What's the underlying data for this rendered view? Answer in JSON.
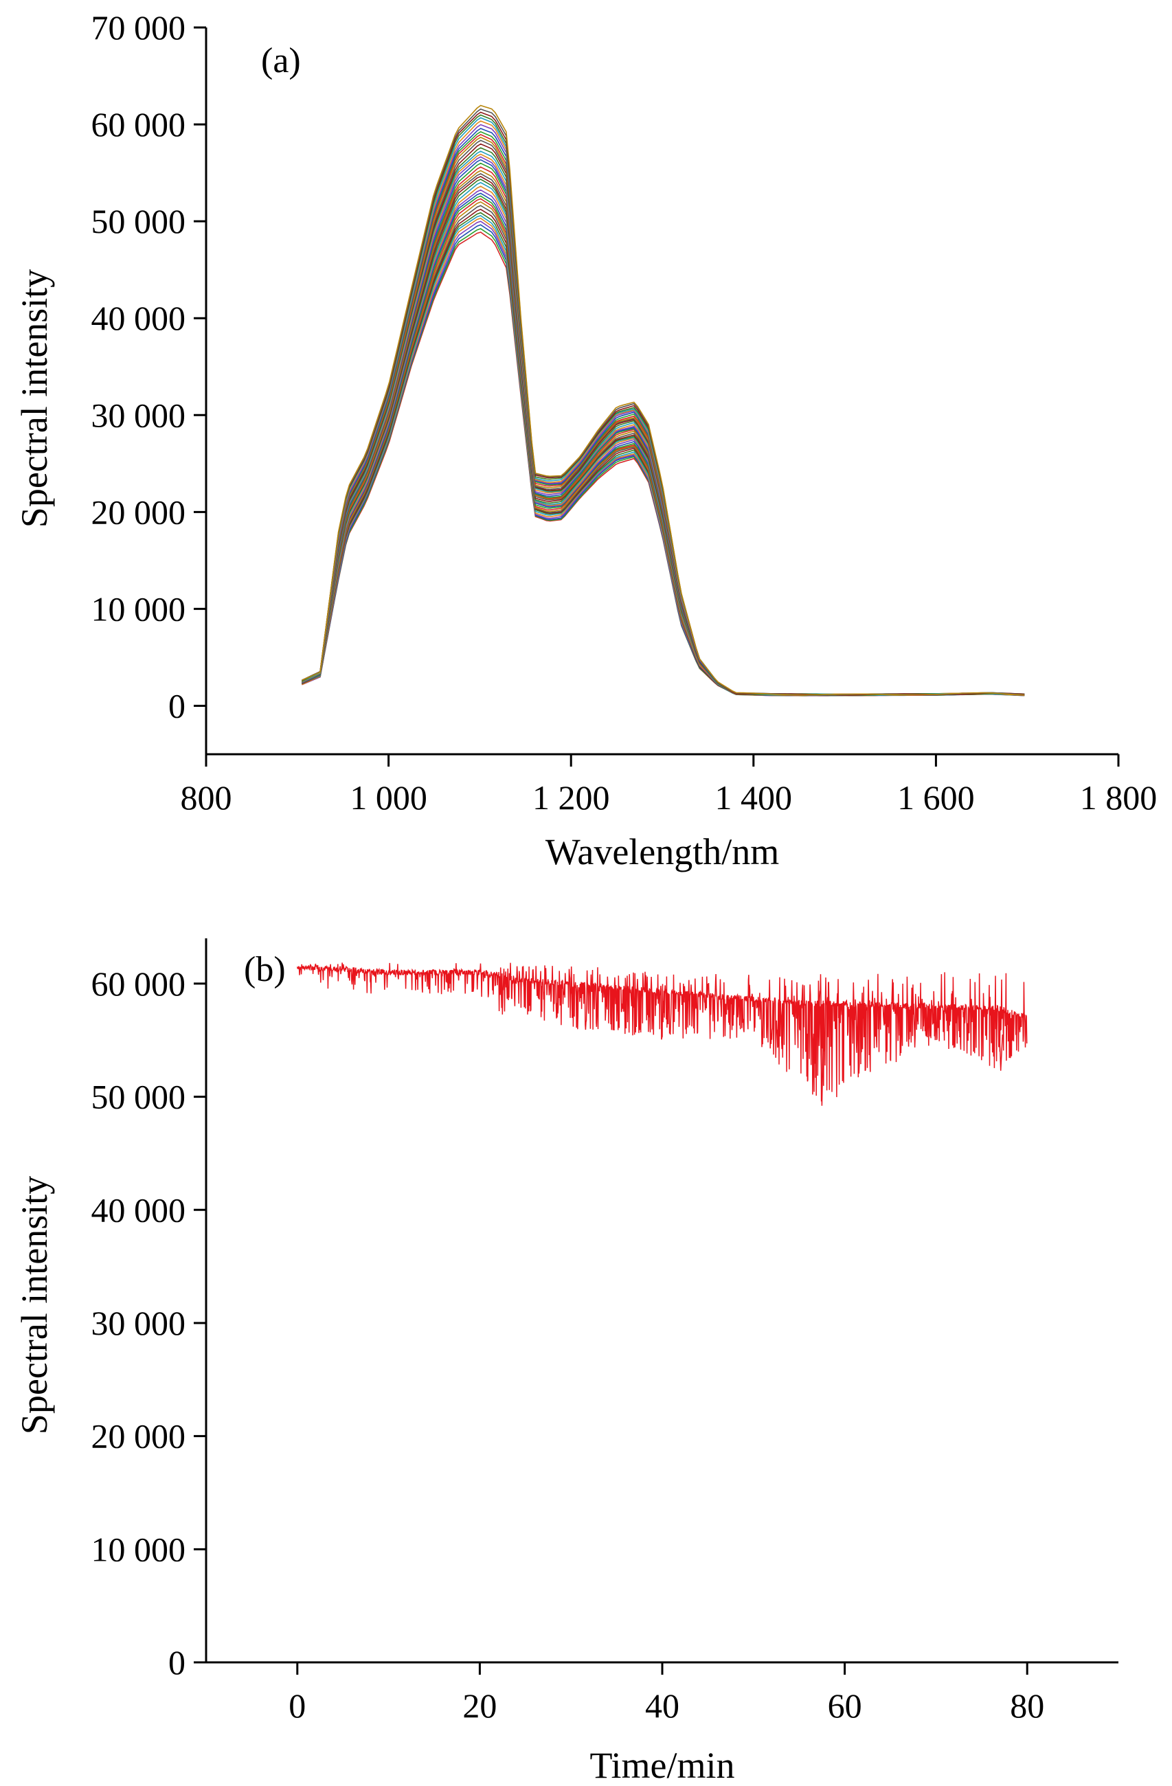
{
  "chart_data": [
    {
      "type": "line",
      "panel_label": "(a)",
      "xlabel": "Wavelength/nm",
      "ylabel": "Spectral intensity",
      "xlim": [
        800,
        1800
      ],
      "ylim": [
        -5000,
        70000
      ],
      "xticks": [
        800,
        1000,
        1200,
        1400,
        1600,
        1800
      ],
      "xtick_labels": [
        "800",
        "1 000",
        "1 200",
        "1 400",
        "1 600",
        "1 800"
      ],
      "yticks": [
        0,
        10000,
        20000,
        30000,
        40000,
        50000,
        60000,
        70000
      ],
      "ytick_labels": [
        "0",
        "10 000",
        "20 000",
        "30 000",
        "40 000",
        "50 000",
        "60 000",
        "70 000"
      ],
      "grid": false,
      "series_count": 40,
      "peak_range": [
        49000,
        62000
      ],
      "x": [
        905,
        925,
        945,
        955,
        975,
        1000,
        1025,
        1050,
        1075,
        1100,
        1115,
        1130,
        1145,
        1160,
        1175,
        1190,
        1210,
        1230,
        1250,
        1270,
        1285,
        1300,
        1320,
        1340,
        1360,
        1380,
        1420,
        1500,
        1600,
        1660,
        1700
      ],
      "envelope_upper": [
        2600,
        3500,
        18000,
        22500,
        26000,
        33000,
        43000,
        53000,
        59500,
        62000,
        61500,
        59000,
        40000,
        24000,
        23700,
        23800,
        25800,
        28500,
        30800,
        31300,
        29000,
        23000,
        12000,
        5000,
        2500,
        1300,
        1200,
        1150,
        1200,
        1300,
        1150
      ],
      "envelope_lower": [
        2200,
        3000,
        13000,
        17500,
        21000,
        27000,
        35000,
        42000,
        47500,
        49000,
        48000,
        45000,
        32000,
        19500,
        19000,
        19200,
        21500,
        23500,
        25000,
        25500,
        23000,
        17500,
        8500,
        4000,
        2200,
        1200,
        1100,
        1100,
        1150,
        1250,
        1100
      ],
      "colors": [
        "#d62728",
        "#2ca02c",
        "#1f4fb4",
        "#7f3fbf",
        "#e08a1e",
        "#1f9fbf",
        "#3a7d22",
        "#8c1a1a",
        "#555555",
        "#b8860b"
      ]
    },
    {
      "type": "line",
      "panel_label": "(b)",
      "xlabel": "Time/min",
      "ylabel": "Spectral intensity",
      "xlim": [
        -10,
        90
      ],
      "ylim": [
        0,
        64000
      ],
      "xticks": [
        0,
        20,
        40,
        60,
        80
      ],
      "xtick_labels": [
        "0",
        "20",
        "40",
        "60",
        "80"
      ],
      "yticks": [
        0,
        10000,
        20000,
        30000,
        40000,
        50000,
        60000
      ],
      "ytick_labels": [
        "0",
        "10 000",
        "20 000",
        "30 000",
        "40 000",
        "50 000",
        "60 000"
      ],
      "grid": false,
      "line_color": "#e8141c",
      "x_range": [
        0,
        80
      ],
      "baseline_points": [
        [
          0,
          61500
        ],
        [
          10,
          61000
        ],
        [
          20,
          61000
        ],
        [
          25,
          60300
        ],
        [
          40,
          59300
        ],
        [
          55,
          58300
        ],
        [
          70,
          58000
        ],
        [
          77,
          57800
        ],
        [
          80,
          57000
        ]
      ],
      "spike_min_points": [
        [
          1,
          59000
        ],
        [
          5,
          57800
        ],
        [
          15,
          57600
        ],
        [
          23,
          57200
        ],
        [
          30,
          56000
        ],
        [
          40,
          55000
        ],
        [
          50,
          55000
        ],
        [
          57.5,
          49200
        ],
        [
          70,
          54700
        ],
        [
          77,
          52300
        ],
        [
          80,
          54500
        ]
      ],
      "spike_max_points": [
        [
          0,
          61900
        ],
        [
          22,
          61900
        ],
        [
          30,
          61600
        ],
        [
          45,
          61000
        ],
        [
          60,
          60800
        ],
        [
          73,
          61200
        ],
        [
          80,
          60800
        ]
      ]
    }
  ]
}
